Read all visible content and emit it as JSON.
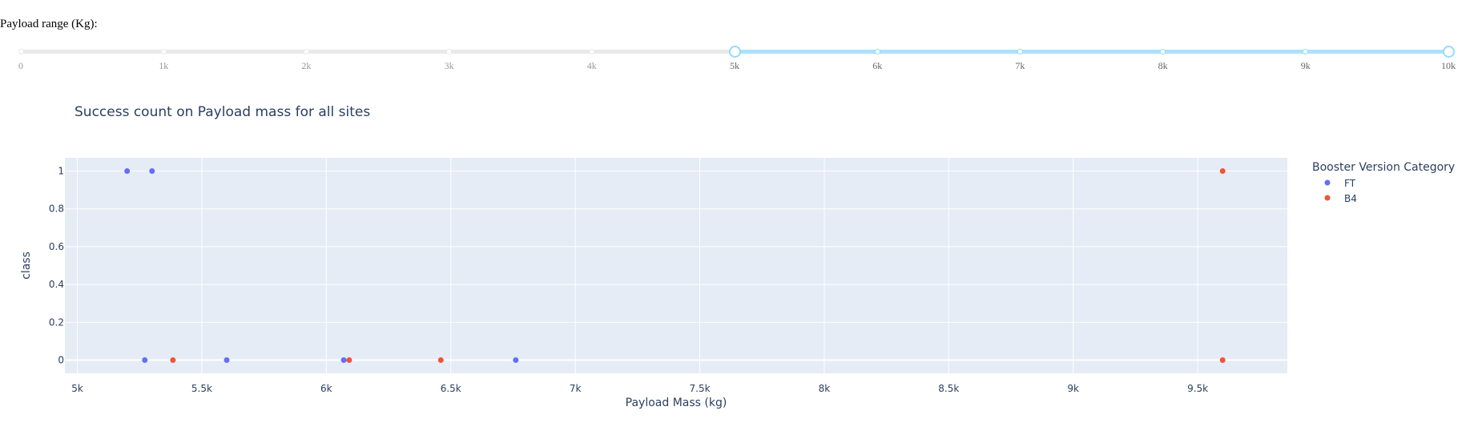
{
  "slider": {
    "label": "Payload range (Kg):",
    "min": 0,
    "max": 10000,
    "selected": [
      5000,
      10000
    ],
    "marks": [
      {
        "value": 0,
        "label": "0"
      },
      {
        "value": 1000,
        "label": "1k"
      },
      {
        "value": 2000,
        "label": "2k"
      },
      {
        "value": 3000,
        "label": "3k"
      },
      {
        "value": 4000,
        "label": "4k"
      },
      {
        "value": 5000,
        "label": "5k"
      },
      {
        "value": 6000,
        "label": "6k"
      },
      {
        "value": 7000,
        "label": "7k"
      },
      {
        "value": 8000,
        "label": "8k"
      },
      {
        "value": 9000,
        "label": "9k"
      },
      {
        "value": 10000,
        "label": "10k"
      }
    ]
  },
  "chart_data": {
    "type": "scatter",
    "title": "Success count on Payload mass for all sites",
    "xlabel": "Payload Mass (kg)",
    "ylabel": "class",
    "xlim": [
      4950,
      9860
    ],
    "ylim": [
      -0.07,
      1.07
    ],
    "x_ticks": [
      5000,
      5500,
      6000,
      6500,
      7000,
      7500,
      8000,
      8500,
      9000,
      9500
    ],
    "x_tick_labels": [
      "5k",
      "5.5k",
      "6k",
      "6.5k",
      "7k",
      "7.5k",
      "8k",
      "8.5k",
      "9k",
      "9.5k"
    ],
    "y_ticks": [
      0,
      0.2,
      0.4,
      0.6,
      0.8,
      1
    ],
    "y_tick_labels": [
      "0",
      "0.2",
      "0.4",
      "0.6",
      "0.8",
      "1"
    ],
    "legend_title": "Booster Version Category",
    "legend_position": "right",
    "grid": true,
    "plot_background": "#e5ecf6",
    "series": [
      {
        "name": "FT",
        "color": "#636efa",
        "points": [
          [
            5200,
            1
          ],
          [
            5300,
            1
          ],
          [
            5271,
            0
          ],
          [
            5600,
            0
          ],
          [
            6070,
            0
          ],
          [
            6761,
            0
          ]
        ]
      },
      {
        "name": "B4",
        "color": "#ef553b",
        "points": [
          [
            5384,
            0
          ],
          [
            6092,
            0
          ],
          [
            6460,
            0
          ],
          [
            9600,
            0
          ],
          [
            9600,
            1
          ]
        ]
      }
    ]
  }
}
